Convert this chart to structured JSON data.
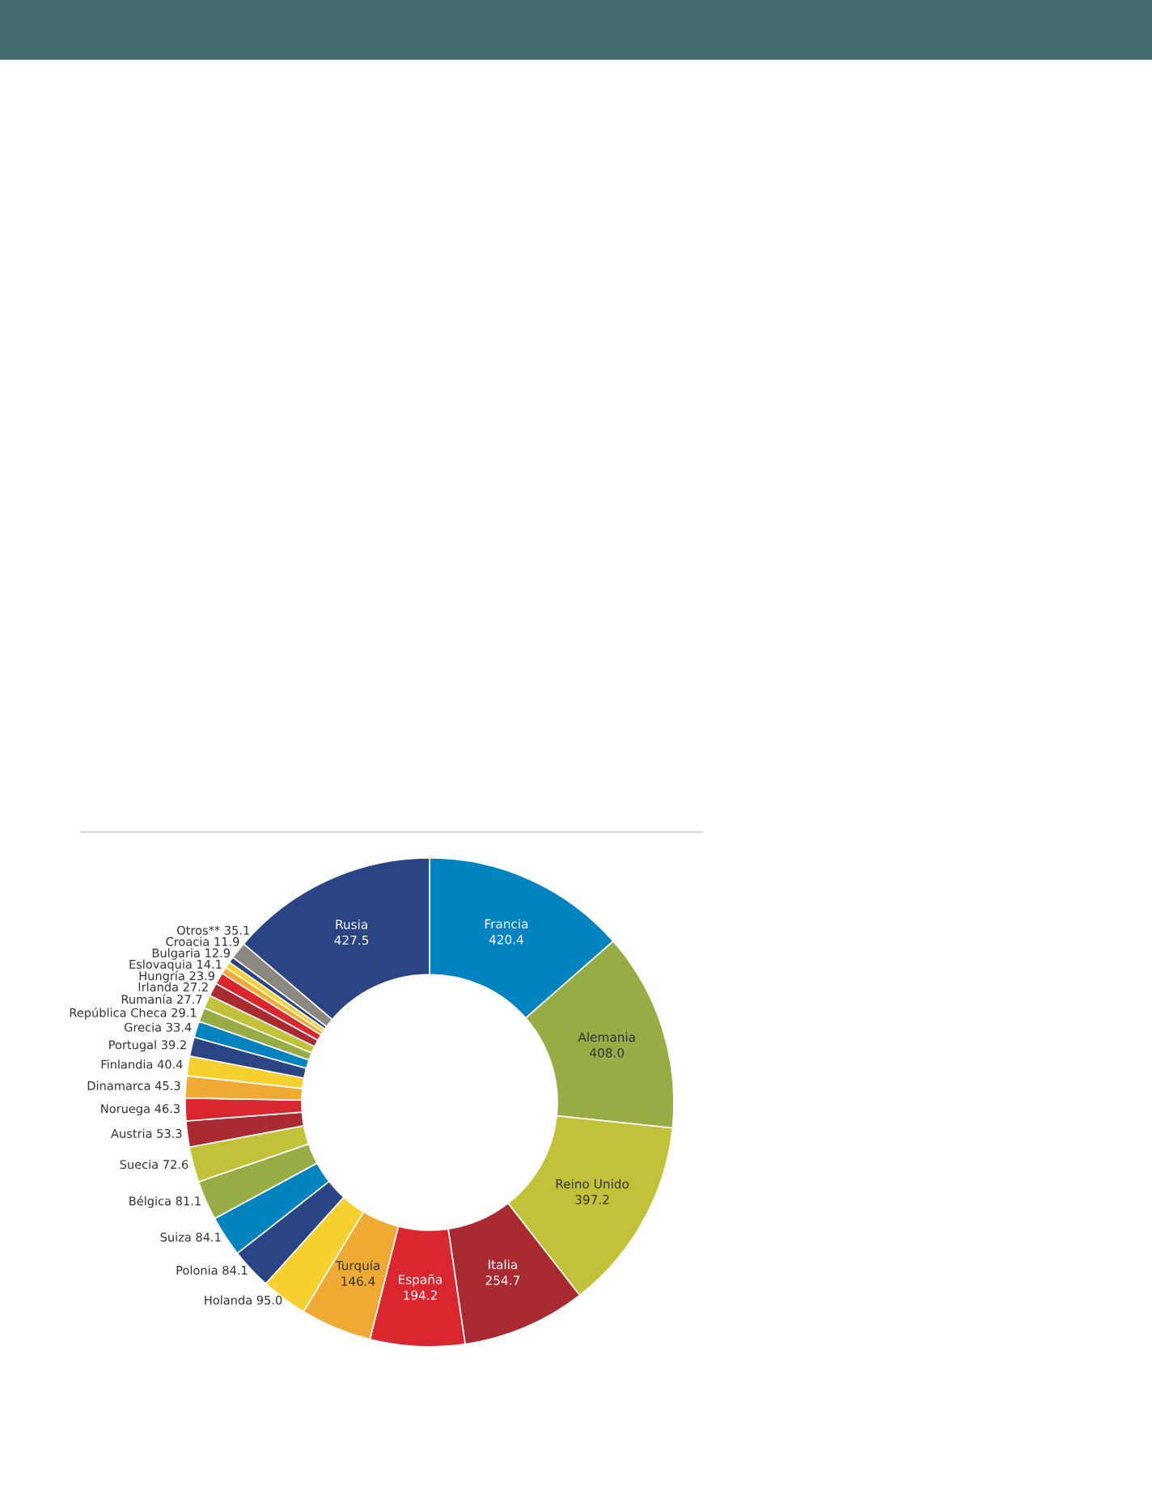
{
  "chart_data": {
    "type": "donut",
    "legend": false,
    "categories": [
      "Francia",
      "Alemania",
      "Reino Unido",
      "Italia",
      "España",
      "Turquía",
      "Holanda",
      "Polonia",
      "Suiza",
      "Bélgica",
      "Suecia",
      "Austria",
      "Noruega",
      "Dinamarca",
      "Finlandia",
      "Portugal",
      "Grecia",
      "República Checa",
      "Rumanía",
      "Irlanda",
      "Hungría",
      "Eslovaquia",
      "Bulgaria",
      "Croacia",
      "Otros**",
      "Rusia"
    ],
    "values": [
      420.4,
      408.0,
      397.2,
      254.7,
      194.2,
      146.4,
      95.0,
      84.1,
      84.1,
      81.1,
      72.6,
      53.3,
      46.3,
      45.3,
      40.4,
      39.2,
      33.4,
      29.1,
      27.7,
      27.2,
      23.9,
      14.1,
      12.9,
      11.9,
      35.1,
      427.5
    ],
    "value_labels": [
      "420.4",
      "408.0",
      "397.2",
      "254.7",
      "194.2",
      "146.4",
      "95.0",
      "84.1",
      "84.1",
      "81.1",
      "72.6",
      "53.3",
      "46.3",
      "45.3",
      "40.4",
      "39.2",
      "33.4",
      "29.1",
      "27.7",
      "27.2",
      "23.9",
      "14.1",
      "12.9",
      "11.9",
      "35.1",
      "427.5"
    ],
    "colors": [
      "#0083be",
      "#97ac45",
      "#c2c13a",
      "#a92a31",
      "#d9262f",
      "#eeaa32",
      "#f5d02f",
      "#2b4584",
      "#0083be",
      "#97ac45",
      "#c2c13a",
      "#a92a31",
      "#d9262f",
      "#eeaa32",
      "#f5d02f",
      "#2b4584",
      "#0083be",
      "#97ac45",
      "#c2c13a",
      "#a92a31",
      "#d9262f",
      "#eeaa32",
      "#f5d02f",
      "#2b4584",
      "#8c8880",
      "#2b4584"
    ]
  }
}
